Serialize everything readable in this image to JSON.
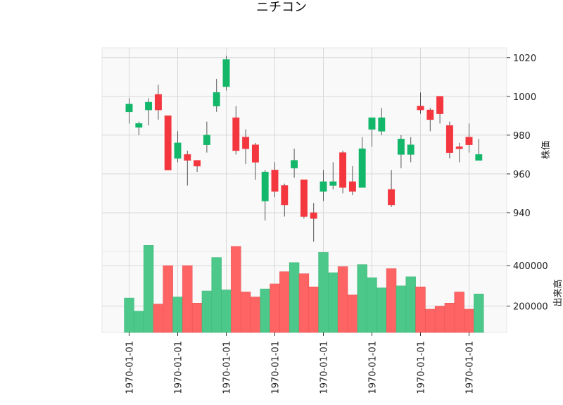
{
  "chart_data": {
    "type": "candlestick",
    "title": "ニチコン",
    "price_ylabel": "株価",
    "volume_ylabel": "出来高",
    "colors": {
      "up": "#12b76a",
      "down": "#f4363f",
      "up_volume": "#4cc98a",
      "down_volume": "#ff6464",
      "grid": "#d8d8d8",
      "panel_bg": "#f9f9f9"
    },
    "price_ylim": [
      920,
      1025
    ],
    "price_ticks": [
      940,
      960,
      980,
      1000,
      1020
    ],
    "volume_ylim": [
      70000,
      470000
    ],
    "volume_ticks": [
      200000,
      400000
    ],
    "x_tick_labels": [
      "1970-01-01",
      "1970-01-01",
      "1970-01-01",
      "1970-01-01",
      "1970-01-01",
      "1970-01-01",
      "1970-01-01",
      "1970-01-01"
    ],
    "x_tick_indices": [
      0,
      5,
      10,
      15,
      20,
      25,
      30,
      35
    ],
    "candles": [
      {
        "o": 992,
        "h": 999,
        "l": 986,
        "c": 996,
        "v": 240000
      },
      {
        "o": 984,
        "h": 987,
        "l": 980,
        "c": 986,
        "v": 175000
      },
      {
        "o": 993,
        "h": 999,
        "l": 985,
        "c": 997,
        "v": 500000
      },
      {
        "o": 1001,
        "h": 1006,
        "l": 988,
        "c": 993,
        "v": 210000
      },
      {
        "o": 990,
        "h": 990,
        "l": 962,
        "c": 962,
        "v": 400000
      },
      {
        "o": 968,
        "h": 982,
        "l": 966,
        "c": 976,
        "v": 245000
      },
      {
        "o": 970,
        "h": 972,
        "l": 954,
        "c": 967,
        "v": 400000
      },
      {
        "o": 967,
        "h": 967,
        "l": 961,
        "c": 964,
        "v": 215000
      },
      {
        "o": 975,
        "h": 987,
        "l": 971,
        "c": 980,
        "v": 275000
      },
      {
        "o": 995,
        "h": 1009,
        "l": 992,
        "c": 1002,
        "v": 440000
      },
      {
        "o": 1005,
        "h": 1021,
        "l": 1003,
        "c": 1019,
        "v": 280000
      },
      {
        "o": 989,
        "h": 995,
        "l": 970,
        "c": 972,
        "v": 495000
      },
      {
        "o": 979,
        "h": 983,
        "l": 965,
        "c": 973,
        "v": 270000
      },
      {
        "o": 975,
        "h": 976,
        "l": 957,
        "c": 966,
        "v": 245000
      },
      {
        "o": 946,
        "h": 962,
        "l": 936,
        "c": 961,
        "v": 285000
      },
      {
        "o": 962,
        "h": 966,
        "l": 948,
        "c": 951,
        "v": 310000
      },
      {
        "o": 954,
        "h": 955,
        "l": 938,
        "c": 944,
        "v": 370000
      },
      {
        "o": 963,
        "h": 973,
        "l": 958,
        "c": 967,
        "v": 415000
      },
      {
        "o": 957,
        "h": 957,
        "l": 937,
        "c": 938,
        "v": 360000
      },
      {
        "o": 940,
        "h": 945,
        "l": 925,
        "c": 937,
        "v": 295000
      },
      {
        "o": 951,
        "h": 962,
        "l": 946,
        "c": 956,
        "v": 465000
      },
      {
        "o": 954,
        "h": 966,
        "l": 952,
        "c": 956,
        "v": 365000
      },
      {
        "o": 971,
        "h": 972,
        "l": 950,
        "c": 953,
        "v": 395000
      },
      {
        "o": 956,
        "h": 964,
        "l": 949,
        "c": 951,
        "v": 255000
      },
      {
        "o": 953,
        "h": 979,
        "l": 953,
        "c": 973,
        "v": 405000
      },
      {
        "o": 983,
        "h": 989,
        "l": 974,
        "c": 989,
        "v": 340000
      },
      {
        "o": 982,
        "h": 994,
        "l": 980,
        "c": 989,
        "v": 290000
      },
      {
        "o": 952,
        "h": 962,
        "l": 943,
        "c": 944,
        "v": 385000
      },
      {
        "o": 970,
        "h": 980,
        "l": 963,
        "c": 978,
        "v": 300000
      },
      {
        "o": 970,
        "h": 979,
        "l": 966,
        "c": 975,
        "v": 345000
      },
      {
        "o": 995,
        "h": 1002,
        "l": 991,
        "c": 993,
        "v": 295000
      },
      {
        "o": 993,
        "h": 994,
        "l": 982,
        "c": 988,
        "v": 185000
      },
      {
        "o": 1000,
        "h": 1000,
        "l": 986,
        "c": 991,
        "v": 200000
      },
      {
        "o": 985,
        "h": 987,
        "l": 968,
        "c": 971,
        "v": 215000
      },
      {
        "o": 974,
        "h": 976,
        "l": 966,
        "c": 973,
        "v": 270000
      },
      {
        "o": 979,
        "h": 986,
        "l": 971,
        "c": 975,
        "v": 185000
      },
      {
        "o": 967,
        "h": 978,
        "l": 967,
        "c": 970,
        "v": 260000
      }
    ]
  }
}
